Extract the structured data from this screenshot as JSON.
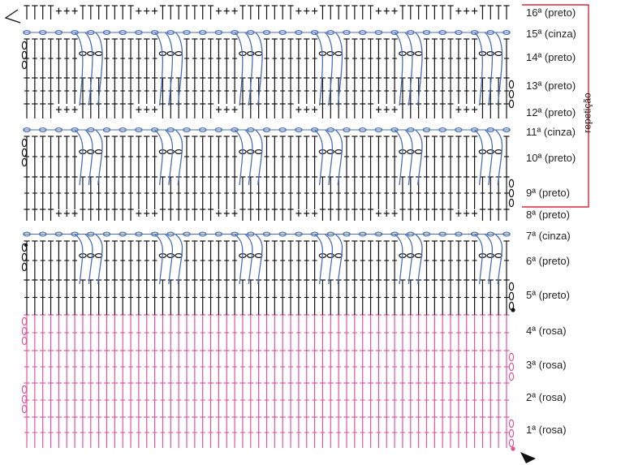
{
  "diagram": {
    "repeat_label": "repetição",
    "colors": {
      "black": "#111111",
      "gray": "#4a6fb5",
      "pink": "#e0569a",
      "bracket": "#d9263a"
    },
    "rows": [
      {
        "num": 16,
        "label": "16ª (preto)",
        "color": "black"
      },
      {
        "num": 15,
        "label": "15ª (cinza)",
        "color": "gray"
      },
      {
        "num": 14,
        "label": "14ª (preto)",
        "color": "black"
      },
      {
        "num": 13,
        "label": "13ª (preto)",
        "color": "black"
      },
      {
        "num": 12,
        "label": "12ª (preto)",
        "color": "black"
      },
      {
        "num": 11,
        "label": "11ª (cinza)",
        "color": "gray"
      },
      {
        "num": 10,
        "label": "10ª (preto)",
        "color": "black"
      },
      {
        "num": 9,
        "label": "9ª (preto)",
        "color": "black"
      },
      {
        "num": 8,
        "label": "8ª (preto)",
        "color": "black"
      },
      {
        "num": 7,
        "label": "7ª (cinza)",
        "color": "gray"
      },
      {
        "num": 6,
        "label": "6ª (preto)",
        "color": "black"
      },
      {
        "num": 5,
        "label": "5ª (preto)",
        "color": "black"
      },
      {
        "num": 4,
        "label": "4ª (rosa)",
        "color": "pink"
      },
      {
        "num": 3,
        "label": "3ª (rosa)",
        "color": "pink"
      },
      {
        "num": 2,
        "label": "2ª (rosa)",
        "color": "pink"
      },
      {
        "num": 1,
        "label": "1ª (rosa)",
        "color": "pink"
      }
    ]
  }
}
